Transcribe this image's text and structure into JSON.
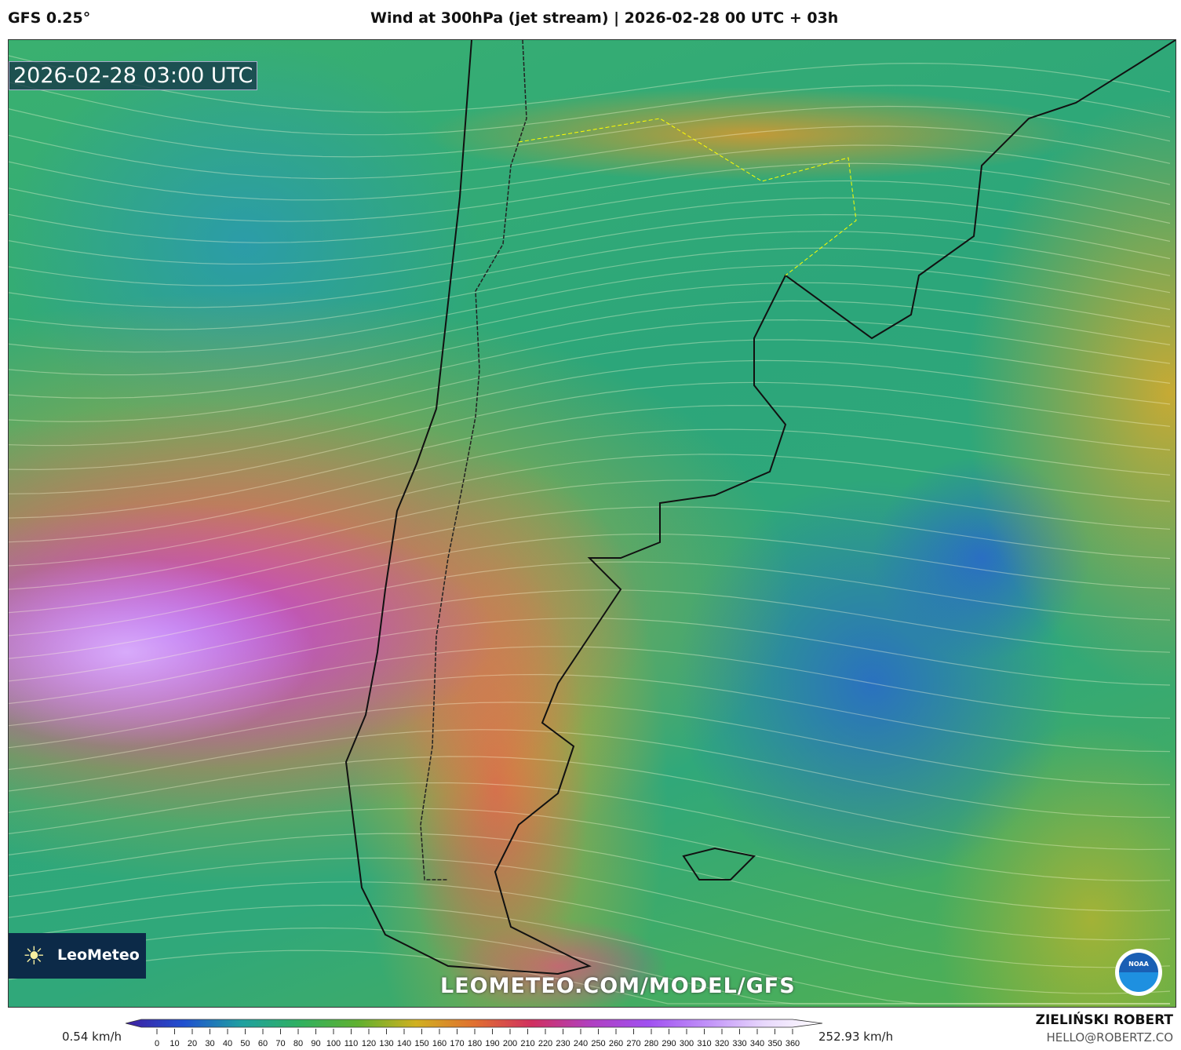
{
  "header": {
    "model": "GFS 0.25°",
    "title": "Wind at 300hPa (jet stream) | 2026-02-28 00 UTC + 03h"
  },
  "map": {
    "valid_time": "2026-02-28 03:00 UTC",
    "watermark_url": "LEOMETEO.COM/MODEL/GFS",
    "logo_text": "Meteo",
    "logo_text_overlay": "Leo",
    "logo_icon": "sun-icon",
    "agency_logo": "NOAA"
  },
  "colorbar": {
    "min_label": "0.54 km/h",
    "max_label": "252.93 km/h",
    "ticks": [
      "0",
      "10",
      "20",
      "30",
      "40",
      "50",
      "60",
      "70",
      "80",
      "90",
      "100",
      "110",
      "120",
      "130",
      "140",
      "150",
      "160",
      "170",
      "180",
      "190",
      "200",
      "210",
      "220",
      "230",
      "240",
      "250",
      "260",
      "270",
      "280",
      "290",
      "300",
      "310",
      "320",
      "330",
      "340",
      "350",
      "360"
    ],
    "colors": [
      "#4020a0",
      "#2050d0",
      "#20a0a0",
      "#30b060",
      "#60b030",
      "#d0b020",
      "#e07030",
      "#d03060",
      "#b040c0",
      "#a050f0",
      "#c090f8",
      "#e8d8fc",
      "#ffffff"
    ]
  },
  "footer": {
    "author": "ZIELIŃSKI ROBERT",
    "email": "HELLO@ROBERTZ.CO"
  }
}
